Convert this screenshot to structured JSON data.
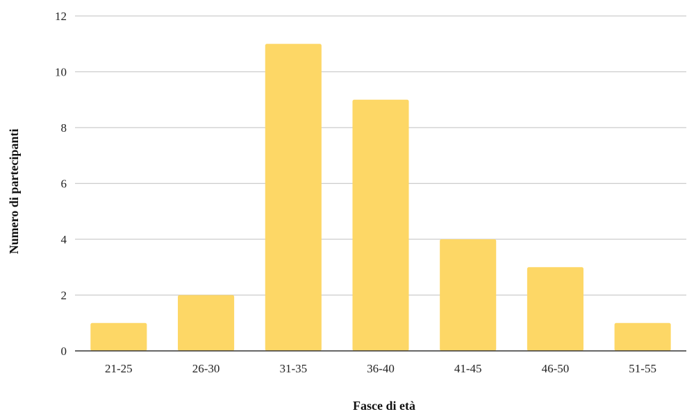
{
  "chart_data": {
    "type": "bar",
    "title": "",
    "xlabel": "Fasce di età",
    "ylabel": "Numero di partecipanti",
    "categories": [
      "21-25",
      "26-30",
      "31-35",
      "36-40",
      "41-45",
      "46-50",
      "51-55"
    ],
    "values": [
      1,
      2,
      11,
      9,
      4,
      3,
      1
    ],
    "ylim": [
      0,
      12
    ],
    "yticks": [
      0,
      2,
      4,
      6,
      8,
      10,
      12
    ],
    "grid": true,
    "legend": "none",
    "colors": {
      "bar": "#FDD766",
      "grid": "#CCCCCC",
      "axis": "#333333"
    }
  }
}
